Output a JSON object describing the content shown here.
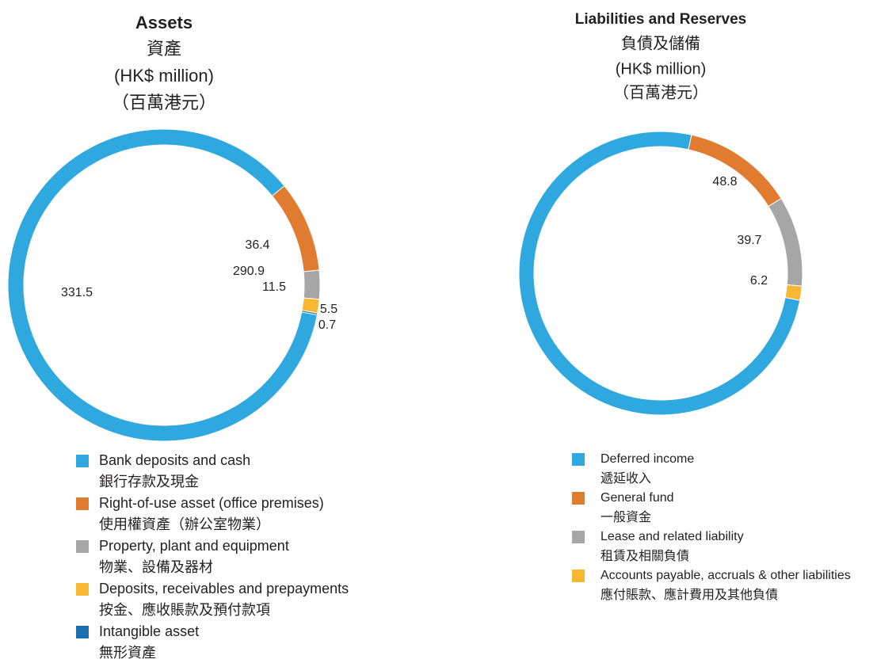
{
  "chart_data": [
    {
      "type": "donut",
      "title": "Assets",
      "subtitle": "資產",
      "unit": "(HK$ million)",
      "unit_zh": "（百萬港元）",
      "categories": [
        "Bank deposits and cash",
        "Right-of-use asset (office premises)",
        "Property, plant and equipment",
        "Deposits, receivables and prepayments",
        "Intangible asset"
      ],
      "categories_zh": [
        "銀行存款及現金",
        "使用權資產（辦公室物業）",
        "物業、設備及器材",
        "按金、應收賬款及預付款項",
        "無形資產"
      ],
      "values": [
        331.5,
        36.4,
        11.5,
        5.5,
        0.7
      ],
      "colors": [
        "#2fa8e0",
        "#e07b30",
        "#a6a6a6",
        "#f7b731",
        "#1a6fb0"
      ]
    },
    {
      "type": "donut",
      "title": "Liabilities and Reserves",
      "subtitle": "負債及儲備",
      "unit": "(HK$ million)",
      "unit_zh": "（百萬港元）",
      "categories": [
        "Deferred income",
        "General fund",
        "Lease and related liability",
        "Accounts payable, accruals & other liabilities"
      ],
      "categories_zh": [
        "遞延收入",
        "一般資金",
        "租賃及相關負債",
        "應付賬款、應計費用及其他負債"
      ],
      "values": [
        290.9,
        48.8,
        39.7,
        6.2
      ],
      "colors": [
        "#2fa8e0",
        "#e07b30",
        "#a6a6a6",
        "#f7b731"
      ]
    }
  ]
}
